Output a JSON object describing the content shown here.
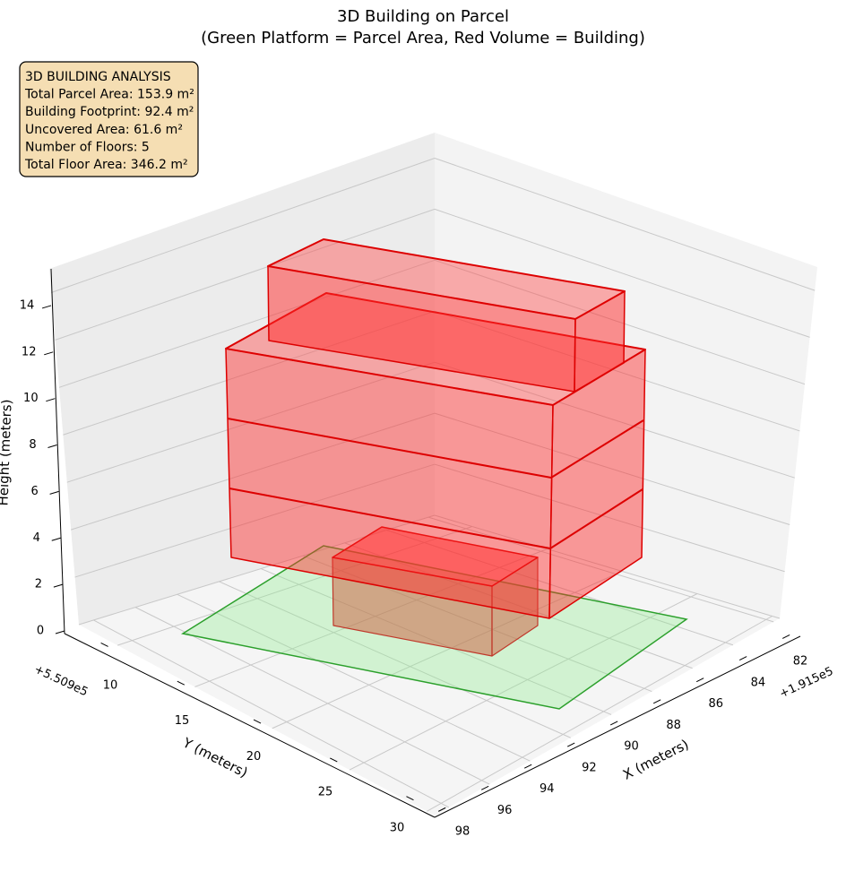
{
  "chart_data": {
    "type": "3d",
    "title": [
      "3D Building on Parcel",
      "(Green Platform = Parcel Area, Red Volume = Building)"
    ],
    "annotation": [
      "3D BUILDING ANALYSIS",
      "Total Parcel Area: 153.9 m²",
      "Building Footprint: 92.4 m²",
      "Uncovered Area: 61.6 m²",
      "Number of Floors: 5",
      "Total Floor Area: 346.2 m²"
    ],
    "xlabel": "X (meters)",
    "ylabel": "Y (meters)",
    "zlabel": "Height (meters)",
    "x_offset": "+1.915e5",
    "y_offset": "+5.509e5",
    "xlim": [
      81.3,
      98.3
    ],
    "xticks": [
      82,
      84,
      86,
      88,
      90,
      92,
      94,
      96,
      98
    ],
    "ylim": [
      7.5,
      30.5
    ],
    "yticks": [
      10,
      15,
      20,
      25,
      30
    ],
    "zlim": [
      0,
      15
    ],
    "zticks": [
      0,
      2,
      4,
      6,
      8,
      10,
      12,
      14
    ],
    "grid": true
  }
}
